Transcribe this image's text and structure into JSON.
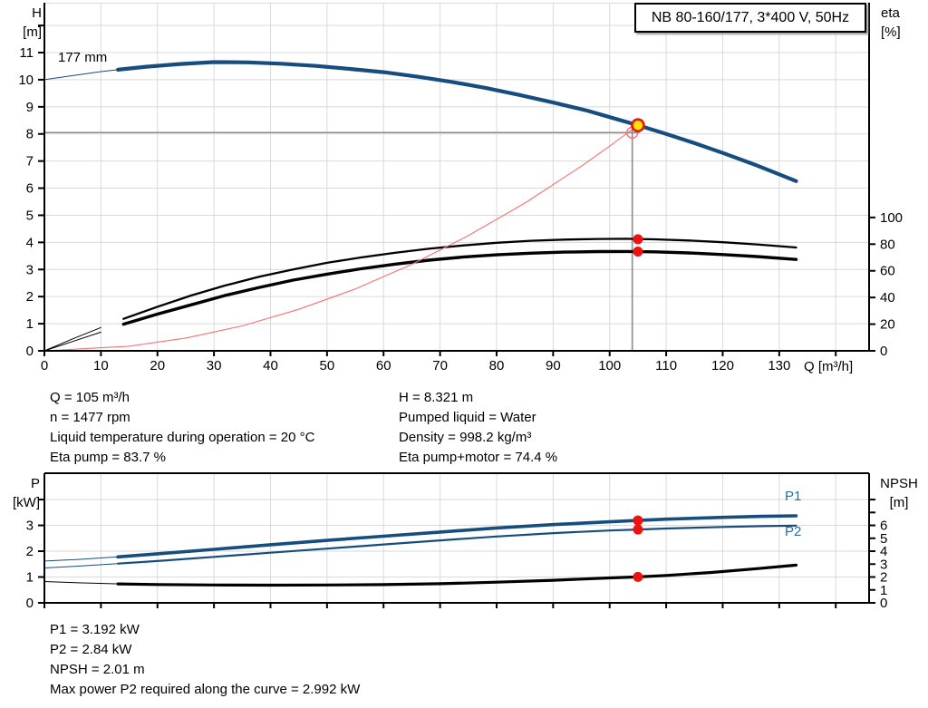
{
  "title_box": "NB 80-160/177, 3*400 V, 50Hz",
  "impeller_label": "177 mm",
  "axis_labels": {
    "head": "H",
    "head_unit": "[m]",
    "eta": "eta",
    "eta_unit": "[%]",
    "flow": "Q [m³/h]",
    "power": "P",
    "power_unit": "[kW]",
    "npsh": "NPSH",
    "npsh_unit": "[m]"
  },
  "series_labels": {
    "p1": "P1",
    "p2": "P2"
  },
  "info_left": [
    "Q = 105 m³/h",
    "n = 1477 rpm",
    "Liquid temperature during operation = 20 °C",
    "Eta pump = 83.7 %"
  ],
  "info_right": [
    "H = 8.321 m",
    "Pumped liquid = Water",
    "Density = 998.2 kg/m³",
    "Eta pump+motor = 74.4 %"
  ],
  "results": [
    "P1 = 3.192 kW",
    "P2 = 2.84 kW",
    "NPSH = 2.01 m",
    "Max power P2 required along the curve = 2.992 kW"
  ],
  "colors": {
    "curve_blue": "#164d7f",
    "label_blue": "#2e6da4",
    "red_dot": "#ee1111",
    "light_red": "#f87070",
    "yellow": "#ffe600",
    "grid": "#d9d9d9",
    "axis": "#000000",
    "crosshair": "#8c8c8c"
  },
  "chart_data": [
    {
      "id": "head",
      "type": "line",
      "title": "NB 80-160/177, 3*400 V, 50Hz",
      "xlabel": "Q [m³/h]",
      "ylabel_left": "H [m]",
      "ylabel_right": "eta [%]",
      "x": {
        "min": 0,
        "max": 145.9,
        "tick_step": 10,
        "labeled_ticks": [
          0,
          10,
          20,
          30,
          40,
          50,
          60,
          70,
          80,
          90,
          100,
          110,
          120,
          130
        ],
        "mark_max": 140
      },
      "left": {
        "min": 0,
        "max": 12.84,
        "tick_step": 1,
        "labeled_ticks": [
          0,
          1,
          2,
          3,
          4,
          5,
          6,
          7,
          8,
          9,
          10,
          11
        ],
        "mark_max": 12
      },
      "right": {
        "min": 0,
        "max": 261,
        "tick_step": 20,
        "labeled_ticks": [
          0,
          20,
          40,
          60,
          80,
          100
        ],
        "mark_max": 100
      },
      "grid": {
        "x_step": 10,
        "y_step": 1,
        "on": true
      },
      "borders": [
        "left",
        "bottom",
        "right"
      ],
      "crosshair": {
        "axis": "left",
        "segments": [
          [
            0,
            8.05,
            105.3,
            8.05
          ],
          [
            104,
            8.2,
            104,
            0
          ]
        ]
      },
      "series": [
        {
          "name": "eta-pump-curve",
          "axis": "right",
          "color": "#000000",
          "width": 2.3,
          "thin_until": 13,
          "points": [
            [
              0,
              0
            ],
            [
              5,
              9
            ],
            [
              10,
              17.5
            ],
            [
              14,
              24
            ],
            [
              20,
              33
            ],
            [
              26,
              41.5
            ],
            [
              32,
              49
            ],
            [
              38,
              55.5
            ],
            [
              44,
              61
            ],
            [
              50,
              66
            ],
            [
              56,
              70
            ],
            [
              62,
              73.5
            ],
            [
              68,
              76.5
            ],
            [
              74,
              79
            ],
            [
              80,
              81
            ],
            [
              86,
              82.5
            ],
            [
              92,
              83.4
            ],
            [
              98,
              83.9
            ],
            [
              103,
              84
            ],
            [
              108,
              83.6
            ],
            [
              114,
              82.7
            ],
            [
              120,
              81.4
            ],
            [
              126,
              79.8
            ],
            [
              133,
              77.5
            ]
          ]
        },
        {
          "name": "eta-pump-motor-curve",
          "axis": "right",
          "color": "#000000",
          "width": 3.4,
          "thin_until": 13,
          "points": [
            [
              0,
              0
            ],
            [
              5,
              7
            ],
            [
              10,
              14
            ],
            [
              14,
              20
            ],
            [
              20,
              27.5
            ],
            [
              26,
              34.5
            ],
            [
              32,
              41.5
            ],
            [
              38,
              47.5
            ],
            [
              44,
              53
            ],
            [
              50,
              57.5
            ],
            [
              56,
              61.5
            ],
            [
              62,
              65
            ],
            [
              68,
              68
            ],
            [
              74,
              70.3
            ],
            [
              80,
              72
            ],
            [
              86,
              73.2
            ],
            [
              92,
              74
            ],
            [
              98,
              74.4
            ],
            [
              103,
              74.5
            ],
            [
              108,
              74.2
            ],
            [
              114,
              73.4
            ],
            [
              120,
              72.2
            ],
            [
              126,
              70.7
            ],
            [
              133,
              68.5
            ]
          ]
        },
        {
          "name": "system-curve",
          "axis": "left",
          "color": "#f87070",
          "width": 1.1,
          "points": [
            [
              0,
              0
            ],
            [
              15,
              0.17
            ],
            [
              25,
              0.47
            ],
            [
              35,
              0.92
            ],
            [
              45,
              1.53
            ],
            [
              55,
              2.28
            ],
            [
              65,
              3.19
            ],
            [
              75,
              4.25
            ],
            [
              85,
              5.45
            ],
            [
              95,
              6.81
            ],
            [
              100,
              7.55
            ],
            [
              105,
              8.321
            ]
          ]
        },
        {
          "name": "pump-curve-177mm",
          "axis": "left",
          "color": "#164d7f",
          "width": 4.2,
          "thin_until": 13,
          "points": [
            [
              0,
              10.0
            ],
            [
              5,
              10.15
            ],
            [
              10,
              10.3
            ],
            [
              13,
              10.37
            ],
            [
              18,
              10.48
            ],
            [
              24,
              10.58
            ],
            [
              30,
              10.65
            ],
            [
              36,
              10.64
            ],
            [
              42,
              10.59
            ],
            [
              48,
              10.51
            ],
            [
              54,
              10.4
            ],
            [
              60,
              10.28
            ],
            [
              66,
              10.11
            ],
            [
              72,
              9.92
            ],
            [
              78,
              9.7
            ],
            [
              84,
              9.44
            ],
            [
              90,
              9.16
            ],
            [
              96,
              8.86
            ],
            [
              100,
              8.62
            ],
            [
              105,
              8.321
            ],
            [
              110,
              8.0
            ],
            [
              115,
              7.66
            ],
            [
              120,
              7.3
            ],
            [
              126,
              6.84
            ],
            [
              130,
              6.51
            ],
            [
              133,
              6.26
            ]
          ]
        }
      ],
      "markers": [
        {
          "name": "duty-point-circle",
          "shape": "open",
          "axis": "left",
          "x": 104,
          "y": 8.05,
          "r": 6,
          "stroke": "#f87070",
          "stroke_width": 1.4
        },
        {
          "name": "eta-pump-point",
          "shape": "dot",
          "axis": "right",
          "x": 105,
          "y": 83.7,
          "r": 5.5,
          "fill": "#ee1111"
        },
        {
          "name": "eta-pump-motor-point",
          "shape": "dot",
          "axis": "right",
          "x": 105,
          "y": 74.4,
          "r": 5.5,
          "fill": "#ee1111"
        },
        {
          "name": "operating-point",
          "shape": "dot",
          "axis": "left",
          "x": 105,
          "y": 8.321,
          "r": 6.5,
          "fill": "#ffe600",
          "stroke": "#ee1111",
          "stroke_width": 2.6
        }
      ]
    },
    {
      "id": "power",
      "type": "line",
      "title": "",
      "xlabel": "",
      "ylabel_left": "P [kW]",
      "ylabel_right": "NPSH [m]",
      "x": {
        "min": 0,
        "max": 145.9,
        "tick_step": 10,
        "labeled_ticks": [],
        "mark_max": 140
      },
      "left": {
        "min": 0,
        "max": 5.02,
        "tick_step": 1,
        "labeled_ticks": [
          0,
          1,
          2,
          3
        ],
        "mark_max": 4
      },
      "right": {
        "min": 0,
        "max": 10.04,
        "tick_step": 1,
        "labeled_ticks": [
          0,
          1,
          2,
          3,
          4,
          5,
          6
        ],
        "mark_max": 8
      },
      "grid": {
        "x_step": 10,
        "y_step": 1,
        "on": true
      },
      "borders": [
        "left",
        "bottom",
        "right",
        "top"
      ],
      "crosshair": null,
      "series": [
        {
          "name": "npsh-curve",
          "axis": "right",
          "color": "#000000",
          "width": 3.2,
          "thin_until": 13,
          "points": [
            [
              0,
              1.65
            ],
            [
              6,
              1.55
            ],
            [
              13,
              1.47
            ],
            [
              20,
              1.42
            ],
            [
              30,
              1.38
            ],
            [
              40,
              1.37
            ],
            [
              50,
              1.38
            ],
            [
              60,
              1.41
            ],
            [
              70,
              1.48
            ],
            [
              80,
              1.6
            ],
            [
              90,
              1.75
            ],
            [
              100,
              1.93
            ],
            [
              105,
              2.01
            ],
            [
              110,
              2.12
            ],
            [
              118,
              2.35
            ],
            [
              126,
              2.65
            ],
            [
              133,
              2.92
            ]
          ]
        },
        {
          "name": "p2-curve",
          "axis": "left",
          "color": "#164d7f",
          "width": 2.2,
          "thin_until": 13,
          "points": [
            [
              0,
              1.35
            ],
            [
              6,
              1.42
            ],
            [
              13,
              1.52
            ],
            [
              20,
              1.62
            ],
            [
              30,
              1.78
            ],
            [
              40,
              1.94
            ],
            [
              50,
              2.1
            ],
            [
              60,
              2.26
            ],
            [
              70,
              2.42
            ],
            [
              80,
              2.57
            ],
            [
              90,
              2.7
            ],
            [
              100,
              2.8
            ],
            [
              105,
              2.84
            ],
            [
              110,
              2.88
            ],
            [
              120,
              2.94
            ],
            [
              127,
              2.97
            ],
            [
              133,
              2.992
            ]
          ]
        },
        {
          "name": "p1-curve",
          "axis": "left",
          "color": "#164d7f",
          "width": 3.6,
          "thin_until": 13,
          "points": [
            [
              0,
              1.62
            ],
            [
              6,
              1.68
            ],
            [
              13,
              1.78
            ],
            [
              20,
              1.9
            ],
            [
              30,
              2.07
            ],
            [
              40,
              2.25
            ],
            [
              50,
              2.42
            ],
            [
              60,
              2.58
            ],
            [
              70,
              2.74
            ],
            [
              80,
              2.9
            ],
            [
              90,
              3.03
            ],
            [
              100,
              3.14
            ],
            [
              105,
              3.192
            ],
            [
              110,
              3.24
            ],
            [
              120,
              3.31
            ],
            [
              127,
              3.35
            ],
            [
              133,
              3.37
            ]
          ]
        }
      ],
      "markers": [
        {
          "name": "p1-point",
          "shape": "dot",
          "axis": "left",
          "x": 105,
          "y": 3.192,
          "r": 5.5,
          "fill": "#ee1111"
        },
        {
          "name": "p2-point",
          "shape": "dot",
          "axis": "left",
          "x": 105,
          "y": 2.84,
          "r": 5.5,
          "fill": "#ee1111"
        },
        {
          "name": "npsh-point",
          "shape": "dot",
          "axis": "right",
          "x": 105,
          "y": 2.01,
          "r": 5.5,
          "fill": "#ee1111"
        }
      ]
    }
  ]
}
